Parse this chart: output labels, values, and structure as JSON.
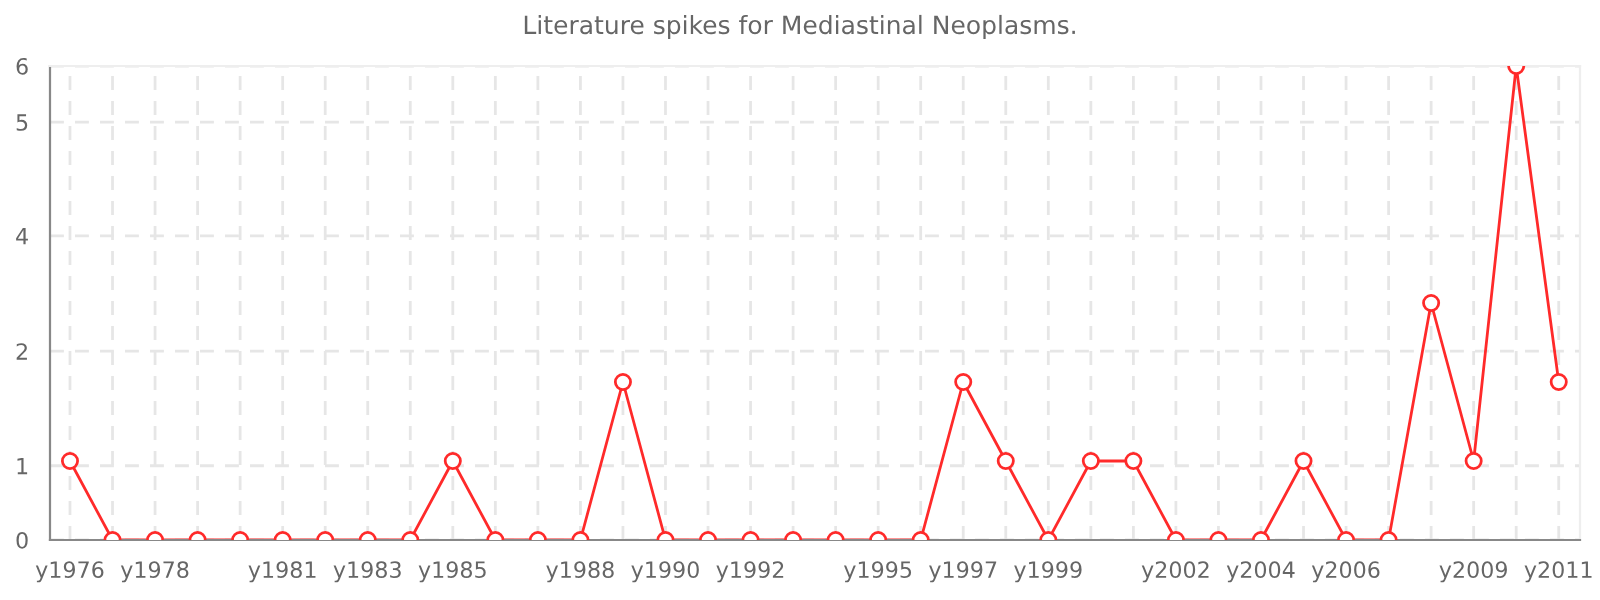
{
  "chart_data": {
    "type": "line",
    "title": "Literature spikes for Mediastinal Neoplasms.",
    "categories": [
      "y1976",
      null,
      "y1978",
      null,
      null,
      "y1981",
      null,
      "y1983",
      null,
      "y1985",
      null,
      null,
      "y1988",
      null,
      "y1990",
      null,
      "y1992",
      null,
      null,
      "y1995",
      null,
      "y1997",
      null,
      "y1999",
      null,
      null,
      "y2002",
      null,
      "y2004",
      null,
      "y2006",
      null,
      null,
      "y2009",
      null,
      "y2011"
    ],
    "series": [
      {
        "color": "#ff2a2a",
        "values": [
          1,
          0,
          0,
          0,
          0,
          0,
          0,
          0,
          0,
          1,
          0,
          0,
          0,
          2,
          0,
          0,
          0,
          0,
          0,
          0,
          0,
          2,
          1,
          0,
          1,
          1,
          0,
          0,
          0,
          1,
          0,
          0,
          3,
          1,
          6,
          2
        ]
      }
    ],
    "ylim": [
      0,
      6
    ],
    "yticks": [
      0,
      {
        "value": 0.94,
        "label": "1"
      },
      {
        "value": 2.39,
        "label": "2"
      },
      {
        "value": 3.85,
        "label": "4"
      },
      {
        "value": 5.29,
        "label": "5"
      },
      6
    ],
    "grid": true,
    "marker": "circle",
    "line_style": "solid",
    "legend": false
  }
}
